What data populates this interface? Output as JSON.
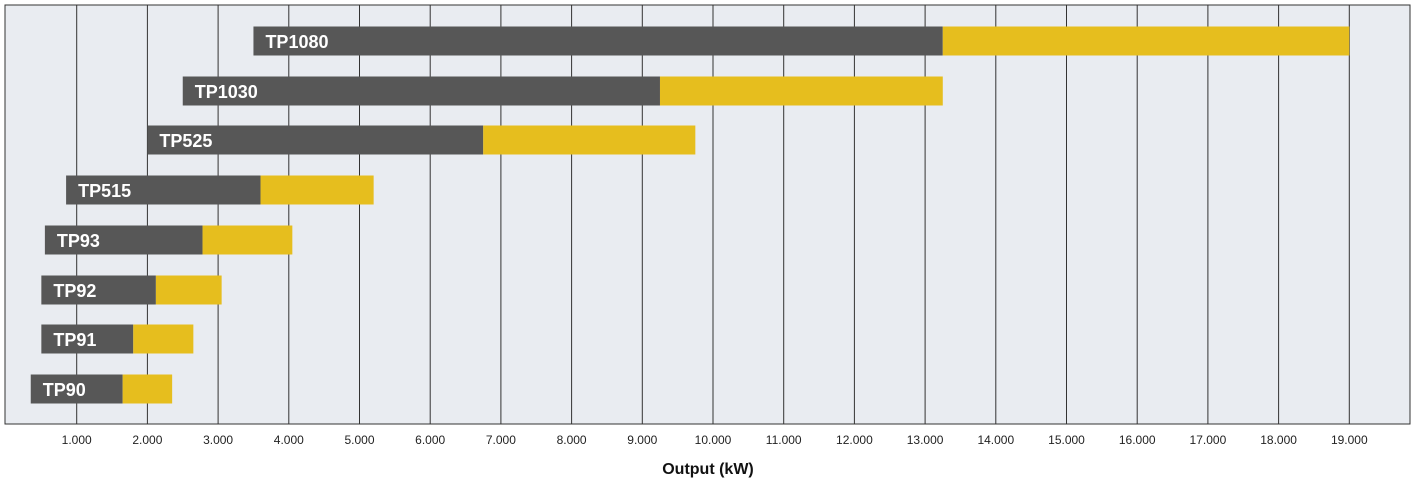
{
  "chart_data": {
    "type": "bar",
    "orientation": "horizontal-range",
    "xlabel": "Output (kW)",
    "x_ticks": [
      "1.000",
      "2.000",
      "3.000",
      "4.000",
      "5.000",
      "6.000",
      "7.000",
      "8.000",
      "9.000",
      "10.000",
      "11.000",
      "12.000",
      "13.000",
      "14.000",
      "15.000",
      "16.000",
      "17.000",
      "18.000",
      "19.000"
    ],
    "xlim": [
      0.1,
      20.0
    ],
    "grid": true,
    "colors": {
      "background": "#e9ecf1",
      "primary_range": "#575757",
      "extended_range": "#e6be1e",
      "grid": "#333333"
    },
    "categories": [
      "TP1080",
      "TP1030",
      "TP525",
      "TP515",
      "TP93",
      "TP92",
      "TP91",
      "TP90"
    ],
    "series": [
      {
        "values": [
          [
            3.5,
            13.25
          ],
          [
            2.5,
            9.25
          ],
          [
            2.0,
            6.75
          ],
          [
            0.85,
            3.6
          ],
          [
            0.55,
            2.78
          ],
          [
            0.5,
            2.12
          ],
          [
            0.5,
            1.8
          ],
          [
            0.35,
            1.65
          ]
        ]
      },
      {
        "values": [
          [
            13.25,
            19.0
          ],
          [
            9.25,
            13.25
          ],
          [
            6.75,
            9.75
          ],
          [
            3.6,
            5.2
          ],
          [
            2.78,
            4.05
          ],
          [
            2.12,
            3.05
          ],
          [
            1.8,
            2.65
          ],
          [
            1.65,
            2.35
          ]
        ]
      }
    ]
  }
}
